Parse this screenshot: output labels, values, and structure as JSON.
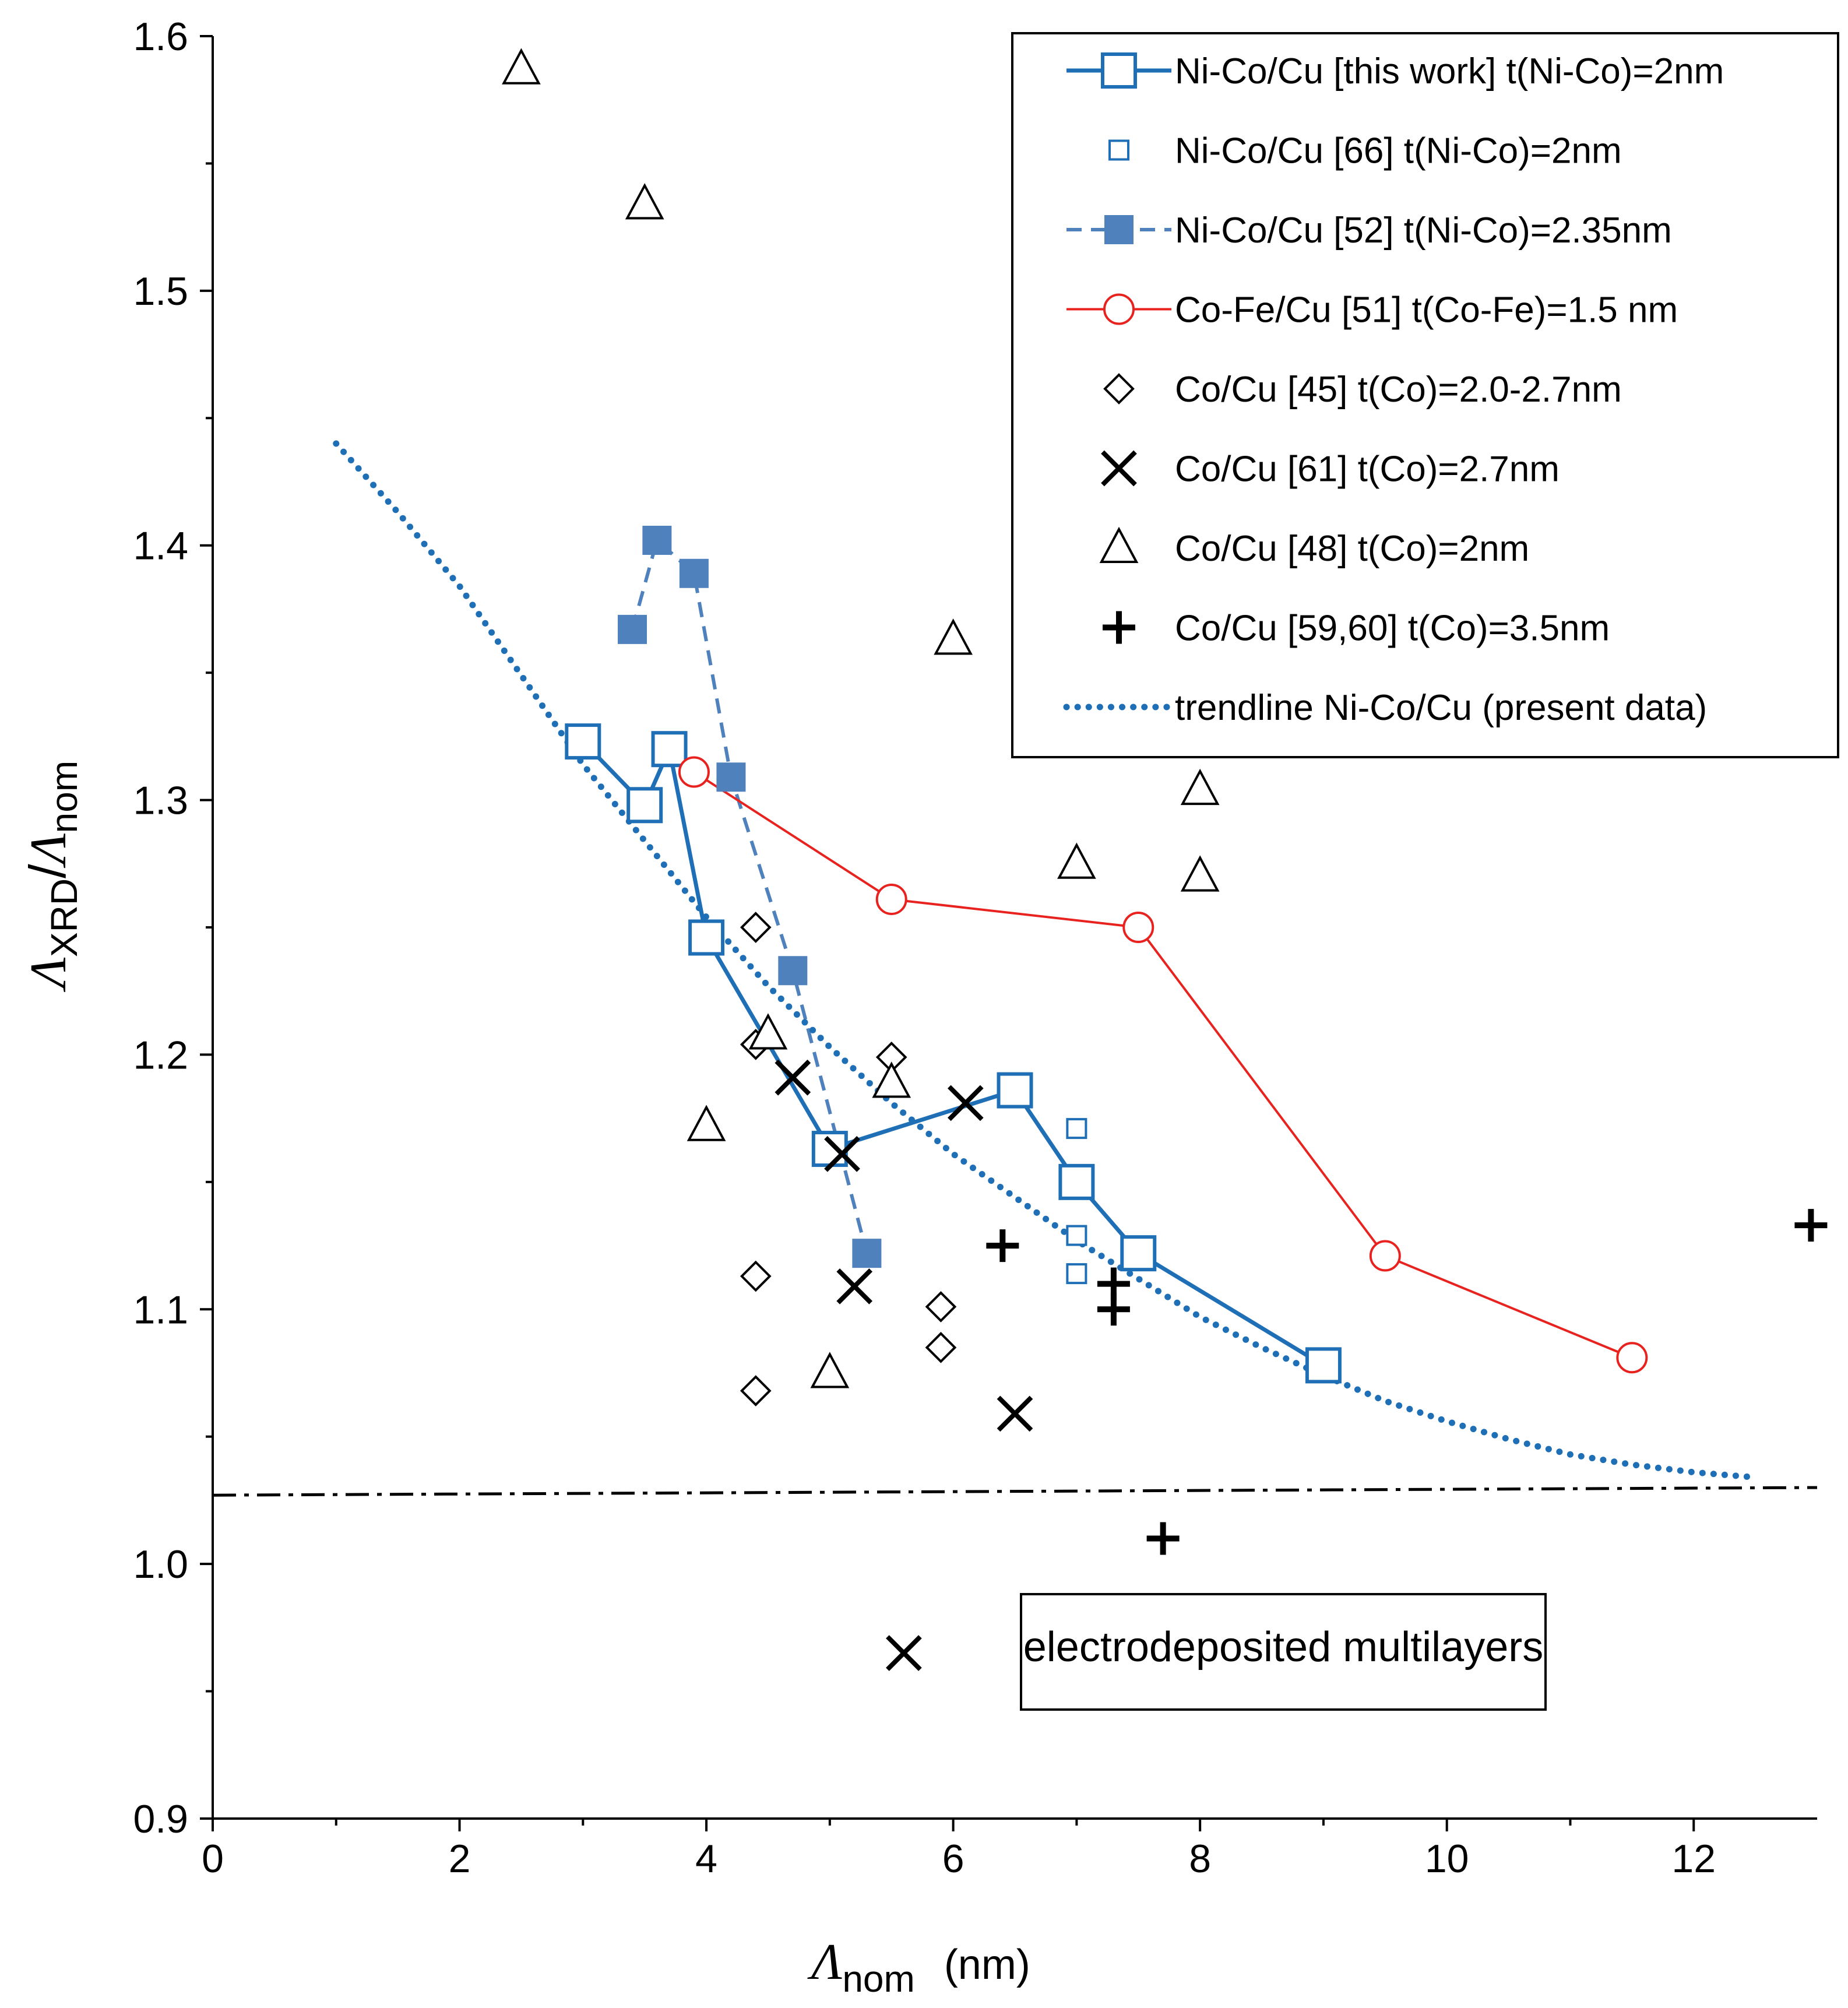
{
  "chart_data": {
    "type": "scatter",
    "title": "",
    "xlabel": {
      "symbol": "Λ",
      "subscript": "nom",
      "unit": "(nm)"
    },
    "ylabel": {
      "symbol_num": "Λ",
      "sub_num": "XRD",
      "slash": "/",
      "symbol_den": "Λ",
      "sub_den": "nom"
    },
    "xlim": [
      0,
      13
    ],
    "ylim": [
      0.9,
      1.6
    ],
    "x_ticks": [
      0,
      2,
      4,
      6,
      8,
      10,
      12
    ],
    "x_tick_labels": [
      "0",
      "2",
      "4",
      "6",
      "8",
      "10",
      "12"
    ],
    "y_ticks": [
      0.9,
      1.0,
      1.1,
      1.2,
      1.3,
      1.4,
      1.5,
      1.6
    ],
    "y_tick_labels": [
      "0.9",
      "1.0",
      "1.1",
      "1.2",
      "1.3",
      "1.4",
      "1.5",
      "1.6"
    ],
    "grid": false,
    "legend_position": "top-right",
    "colors": {
      "blue": "#1f6fb6",
      "steel": "#4f81bd",
      "red": "#e8231f",
      "black": "#000000"
    },
    "series": [
      {
        "name": "Ni-Co/Cu [this work] t(Ni-Co)=2nm",
        "marker": "open-square-large",
        "line": "solid-thick",
        "color": "#1f6fb6",
        "x": [
          3.0,
          3.5,
          3.7,
          4.0,
          5.0,
          6.5,
          7.0,
          7.5,
          9.0
        ],
        "y": [
          1.323,
          1.298,
          1.32,
          1.246,
          1.163,
          1.186,
          1.15,
          1.122,
          1.078
        ]
      },
      {
        "name": "Ni-Co/Cu [66] t(Ni-Co)=2nm",
        "marker": "open-square-small",
        "line": "none",
        "color": "#1f6fb6",
        "x": [
          7.0,
          7.0,
          7.0
        ],
        "y": [
          1.171,
          1.129,
          1.114
        ]
      },
      {
        "name": "Ni-Co/Cu [52] t(Ni-Co)=2.35nm",
        "marker": "filled-square",
        "line": "dashed",
        "color": "#4f81bd",
        "x": [
          3.4,
          3.6,
          3.9,
          4.2,
          4.7,
          5.3
        ],
        "y": [
          1.367,
          1.402,
          1.389,
          1.309,
          1.233,
          1.122
        ]
      },
      {
        "name": "Co-Fe/Cu [51] t(Co-Fe)=1.5 nm",
        "marker": "open-circle",
        "line": "solid-thin",
        "color": "#e8231f",
        "x": [
          3.9,
          5.5,
          7.5,
          9.5,
          11.5
        ],
        "y": [
          1.311,
          1.261,
          1.25,
          1.121,
          1.081
        ]
      },
      {
        "name": "Co/Cu [45] t(Co)=2.0-2.7nm",
        "marker": "open-diamond",
        "line": "none",
        "color": "#000000",
        "x": [
          4.4,
          4.4,
          4.4,
          4.4,
          5.5,
          5.9,
          5.9
        ],
        "y": [
          1.25,
          1.204,
          1.113,
          1.068,
          1.199,
          1.101,
          1.085
        ]
      },
      {
        "name": "Co/Cu [61] t(Co)=2.7nm",
        "marker": "x",
        "line": "none",
        "color": "#000000",
        "x": [
          4.7,
          5.1,
          5.2,
          5.6,
          6.1,
          6.5
        ],
        "y": [
          1.191,
          1.161,
          1.109,
          0.965,
          1.181,
          1.059
        ]
      },
      {
        "name": "Co/Cu [48] t(Co)=2nm",
        "marker": "open-triangle",
        "line": "none",
        "color": "#000000",
        "x": [
          2.5,
          3.5,
          4.0,
          4.5,
          5.0,
          5.5,
          6.0,
          7.0,
          8.0,
          8.0
        ],
        "y": [
          1.587,
          1.534,
          1.172,
          1.208,
          1.075,
          1.189,
          1.363,
          1.275,
          1.304,
          1.27
        ]
      },
      {
        "name": "Co/Cu [59,60] t(Co)=3.5nm",
        "marker": "plus",
        "line": "none",
        "color": "#000000",
        "x": [
          6.4,
          7.3,
          7.3,
          7.7,
          12.95
        ],
        "y": [
          1.125,
          1.11,
          1.1,
          1.01,
          1.133
        ]
      },
      {
        "name": "trendline Ni-Co/Cu (present data)",
        "marker": "none",
        "line": "dotted",
        "color": "#1f6fb6",
        "x": [
          1.0,
          1.5,
          2.0,
          2.5,
          3.0,
          3.5,
          4.0,
          4.5,
          5.0,
          5.5,
          6.0,
          6.5,
          7.0,
          7.5,
          8.0,
          8.5,
          9.0,
          9.5,
          10.0,
          10.5,
          11.0,
          11.5,
          12.0,
          12.5
        ],
        "y": [
          1.44,
          1.413,
          1.384,
          1.349,
          1.314,
          1.284,
          1.254,
          1.227,
          1.203,
          1.181,
          1.161,
          1.144,
          1.127,
          1.112,
          1.097,
          1.085,
          1.074,
          1.064,
          1.056,
          1.049,
          1.043,
          1.039,
          1.036,
          1.034
        ]
      }
    ],
    "reference_line": {
      "style": "dash-dot",
      "color": "#000000",
      "x": [
        0,
        13
      ],
      "y": [
        1.027,
        1.03
      ]
    },
    "annotation": "electrodeposited multilayers"
  }
}
